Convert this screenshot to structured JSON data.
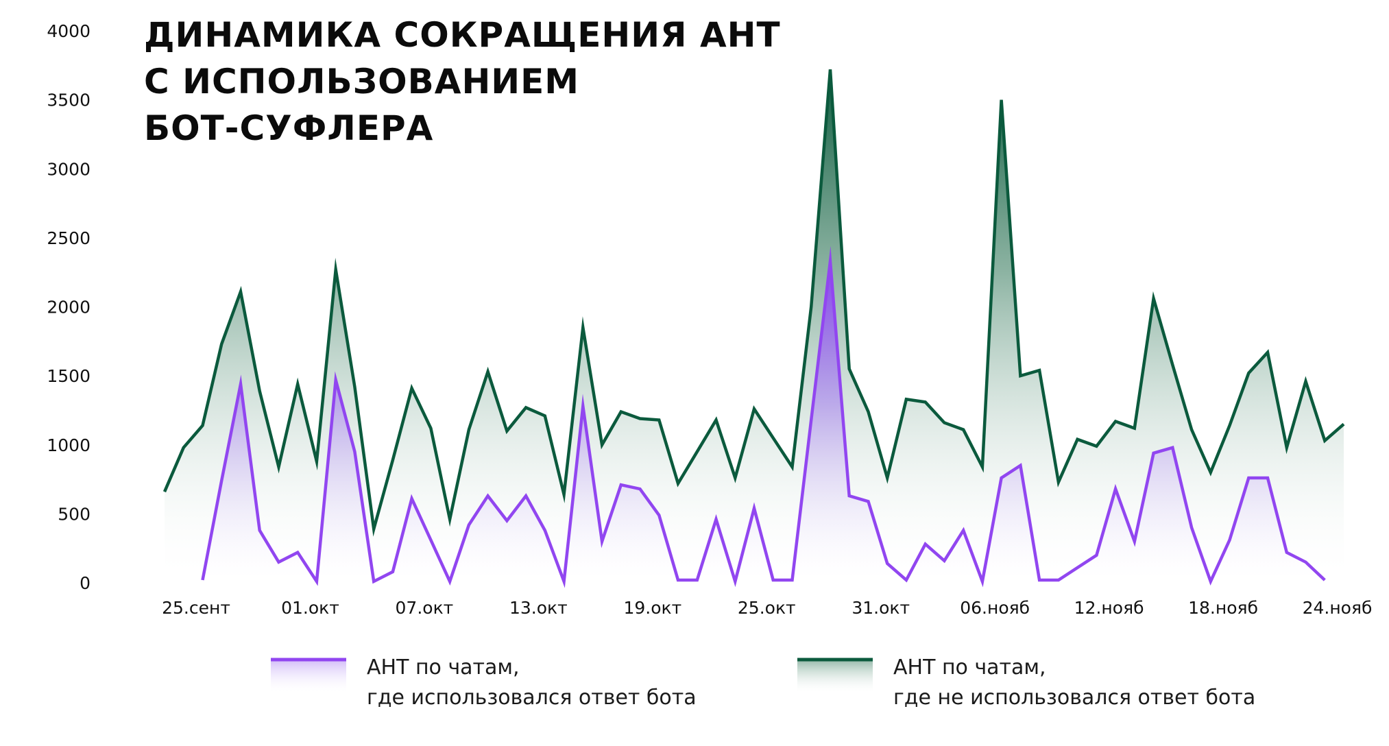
{
  "title": {
    "line1": "ДИНАМИКА СОКРАЩЕНИЯ АНТ",
    "line2": "С ИСПОЛЬЗОВАНИЕМ",
    "line3": "БОТ-СУФЛЕРА"
  },
  "chart_data": {
    "type": "area",
    "title": "ДИНАМИКА СОКРАЩЕНИЯ АНТ С ИСПОЛЬЗОВАНИЕМ БОТ-СУФЛЕРА",
    "xlabel": "",
    "ylabel": "",
    "ylim": [
      0,
      4000
    ],
    "yticks": [
      "0",
      "500",
      "1000",
      "1500",
      "2000",
      "2500",
      "3000",
      "3500",
      "4000"
    ],
    "x_tick_labels": [
      "25.сент",
      "01.окт",
      "07.окт",
      "13.окт",
      "19.окт",
      "25.окт",
      "31.окт",
      "06.нояб",
      "12.нояб",
      "18.нояб",
      "24.нояб"
    ],
    "x_tick_index_step": 6,
    "grid": false,
    "legend_position": "bottom",
    "series": [
      {
        "name": "АНТ по чатам, где не использовался ответ бота",
        "color": "#0b5a3d",
        "values": [
          660,
          980,
          1140,
          1730,
          2110,
          1390,
          840,
          1440,
          880,
          2270,
          1420,
          390,
          890,
          1410,
          1120,
          460,
          1110,
          1530,
          1100,
          1270,
          1210,
          640,
          1850,
          1000,
          1240,
          1190,
          1180,
          720,
          950,
          1180,
          760,
          1260,
          1050,
          840,
          2000,
          3720,
          1550,
          1240,
          760,
          1330,
          1310,
          1160,
          1110,
          840,
          3500,
          1500,
          1540,
          730,
          1040,
          990,
          1170,
          1120,
          2060,
          1580,
          1110,
          800,
          1140,
          1520,
          1670,
          980,
          1460,
          1030,
          1150
        ]
      },
      {
        "name": "АНТ по чатам, где использовался ответ бота",
        "color": "#9146f0",
        "values": [
          null,
          null,
          20,
          740,
          1440,
          380,
          150,
          220,
          10,
          1470,
          950,
          10,
          80,
          610,
          310,
          10,
          420,
          630,
          450,
          630,
          380,
          10,
          1280,
          300,
          710,
          680,
          490,
          20,
          20,
          460,
          10,
          540,
          20,
          20,
          1180,
          2330,
          630,
          590,
          140,
          20,
          280,
          160,
          380,
          10,
          760,
          850,
          20,
          20,
          110,
          200,
          680,
          300,
          940,
          980,
          400,
          10,
          310,
          760,
          760,
          220,
          150,
          20,
          null
        ]
      }
    ]
  },
  "legend": {
    "item1": {
      "line1": "АНТ по чатам,",
      "line2": "где использовался ответ бота",
      "color": "#9146f0"
    },
    "item2": {
      "line1": "АНТ по чатам,",
      "line2": "где не использовался ответ бота",
      "color": "#0b5a3d"
    }
  }
}
